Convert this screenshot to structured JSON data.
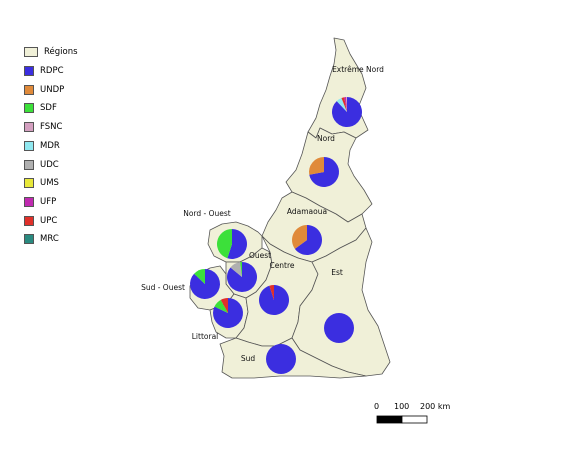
{
  "legend": {
    "region_label": "Régions",
    "region_color": "#f0f0d8",
    "parties": [
      {
        "name": "RDPC",
        "color": "#3b2ee0"
      },
      {
        "name": "UNDP",
        "color": "#e08a3a"
      },
      {
        "name": "SDF",
        "color": "#3ce03a"
      },
      {
        "name": "FSNC",
        "color": "#d4a0c0"
      },
      {
        "name": "MDR",
        "color": "#90e8f0"
      },
      {
        "name": "UDC",
        "color": "#b0b0b0"
      },
      {
        "name": "UMS",
        "color": "#e8e83a"
      },
      {
        "name": "UFP",
        "color": "#c02ab0"
      },
      {
        "name": "UPC",
        "color": "#e0302a"
      },
      {
        "name": "MRC",
        "color": "#2a8a80"
      }
    ]
  },
  "regions": [
    {
      "name": "Extrême Nord",
      "shares": {
        "RDPC": 0.88,
        "MDR": 0.06,
        "UPC": 0.03,
        "UFP": 0.02,
        "FSNC": 0.01
      }
    },
    {
      "name": "Nord",
      "shares": {
        "RDPC": 0.72,
        "UNDP": 0.28
      }
    },
    {
      "name": "Adamaoua",
      "shares": {
        "RDPC": 0.65,
        "UNDP": 0.35
      }
    },
    {
      "name": "Nord - Ouest",
      "shares": {
        "RDPC": 0.55,
        "SDF": 0.45
      }
    },
    {
      "name": "Ouest",
      "shares": {
        "RDPC": 0.86,
        "UDC": 0.12,
        "SDF": 0.02
      }
    },
    {
      "name": "Sud - Ouest",
      "shares": {
        "RDPC": 0.87,
        "SDF": 0.13
      }
    },
    {
      "name": "Littoral",
      "shares": {
        "RDPC": 0.82,
        "SDF": 0.1,
        "UPC": 0.08
      }
    },
    {
      "name": "Centre",
      "shares": {
        "RDPC": 0.95,
        "UPC": 0.05
      }
    },
    {
      "name": "Est",
      "shares": {
        "RDPC": 1.0
      }
    },
    {
      "name": "Sud",
      "shares": {
        "RDPC": 1.0
      }
    }
  ],
  "scale_bar": {
    "labels": [
      "0",
      "100",
      "200 km"
    ]
  }
}
